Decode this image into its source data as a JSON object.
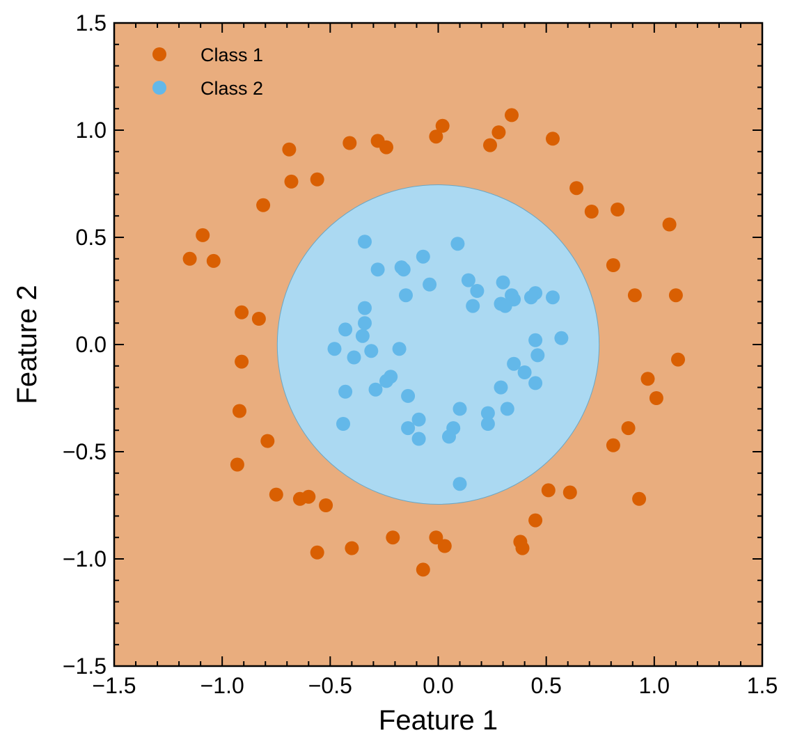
{
  "chart_data": {
    "type": "scatter",
    "title": "",
    "xlabel": "Feature 1",
    "ylabel": "Feature 2",
    "xlim": [
      -1.5,
      1.5
    ],
    "ylim": [
      -1.5,
      1.5
    ],
    "xticks": [
      "−1.5",
      "−1.0",
      "−0.5",
      "0.0",
      "0.5",
      "1.0",
      "1.5"
    ],
    "yticks": [
      "−1.5",
      "−1.0",
      "−0.5",
      "0.0",
      "0.5",
      "1.0",
      "1.5"
    ],
    "grid": false,
    "legend_position": "top-left",
    "decision_regions": {
      "outside_color": "#e9ad7e",
      "inside_color": "#abd9f2",
      "boundary": "circle",
      "center": [
        0,
        0
      ],
      "radius": 0.745
    },
    "series": [
      {
        "name": "Class 1",
        "color": "#d95f02",
        "points": [
          [
            -0.69,
            0.91
          ],
          [
            -0.41,
            0.94
          ],
          [
            -0.28,
            0.95
          ],
          [
            -0.24,
            0.92
          ],
          [
            -0.01,
            0.97
          ],
          [
            0.02,
            1.02
          ],
          [
            0.24,
            0.93
          ],
          [
            0.28,
            0.99
          ],
          [
            0.34,
            1.07
          ],
          [
            0.53,
            0.96
          ],
          [
            -0.68,
            0.76
          ],
          [
            -0.56,
            0.77
          ],
          [
            -0.81,
            0.65
          ],
          [
            0.64,
            0.73
          ],
          [
            0.71,
            0.62
          ],
          [
            0.83,
            0.63
          ],
          [
            1.07,
            0.56
          ],
          [
            -1.09,
            0.51
          ],
          [
            -1.15,
            0.4
          ],
          [
            -1.04,
            0.39
          ],
          [
            0.81,
            0.37
          ],
          [
            0.91,
            0.23
          ],
          [
            1.1,
            0.23
          ],
          [
            -0.91,
            0.15
          ],
          [
            -0.83,
            0.12
          ],
          [
            -0.91,
            -0.08
          ],
          [
            1.11,
            -0.07
          ],
          [
            0.97,
            -0.16
          ],
          [
            1.01,
            -0.25
          ],
          [
            -0.92,
            -0.31
          ],
          [
            0.88,
            -0.39
          ],
          [
            -0.79,
            -0.45
          ],
          [
            0.81,
            -0.47
          ],
          [
            -0.93,
            -0.56
          ],
          [
            -0.75,
            -0.7
          ],
          [
            -0.64,
            -0.72
          ],
          [
            -0.6,
            -0.71
          ],
          [
            -0.52,
            -0.75
          ],
          [
            0.51,
            -0.68
          ],
          [
            0.61,
            -0.69
          ],
          [
            0.93,
            -0.72
          ],
          [
            0.45,
            -0.82
          ],
          [
            -0.21,
            -0.9
          ],
          [
            -0.01,
            -0.9
          ],
          [
            0.38,
            -0.92
          ],
          [
            0.39,
            -0.95
          ],
          [
            0.03,
            -0.94
          ],
          [
            -0.4,
            -0.95
          ],
          [
            -0.56,
            -0.97
          ],
          [
            -0.07,
            -1.05
          ]
        ]
      },
      {
        "name": "Class 2",
        "color": "#63b8e9",
        "points": [
          [
            -0.34,
            0.48
          ],
          [
            0.09,
            0.47
          ],
          [
            -0.07,
            0.41
          ],
          [
            -0.17,
            0.36
          ],
          [
            -0.28,
            0.35
          ],
          [
            -0.16,
            0.35
          ],
          [
            -0.04,
            0.28
          ],
          [
            0.14,
            0.3
          ],
          [
            0.18,
            0.25
          ],
          [
            0.3,
            0.29
          ],
          [
            -0.15,
            0.23
          ],
          [
            0.34,
            0.23
          ],
          [
            0.45,
            0.24
          ],
          [
            0.43,
            0.22
          ],
          [
            0.53,
            0.22
          ],
          [
            0.29,
            0.19
          ],
          [
            0.35,
            0.21
          ],
          [
            0.31,
            0.18
          ],
          [
            0.16,
            0.18
          ],
          [
            -0.34,
            0.17
          ],
          [
            -0.34,
            0.1
          ],
          [
            -0.43,
            0.07
          ],
          [
            -0.35,
            0.04
          ],
          [
            -0.48,
            -0.02
          ],
          [
            -0.31,
            -0.03
          ],
          [
            -0.18,
            -0.02
          ],
          [
            -0.39,
            -0.06
          ],
          [
            0.45,
            0.02
          ],
          [
            0.57,
            0.03
          ],
          [
            0.46,
            -0.05
          ],
          [
            0.35,
            -0.09
          ],
          [
            0.4,
            -0.13
          ],
          [
            -0.22,
            -0.15
          ],
          [
            -0.24,
            -0.17
          ],
          [
            0.29,
            -0.2
          ],
          [
            0.45,
            -0.18
          ],
          [
            -0.43,
            -0.22
          ],
          [
            -0.29,
            -0.21
          ],
          [
            -0.14,
            -0.24
          ],
          [
            0.1,
            -0.3
          ],
          [
            0.23,
            -0.32
          ],
          [
            0.32,
            -0.3
          ],
          [
            -0.44,
            -0.37
          ],
          [
            -0.14,
            -0.39
          ],
          [
            -0.09,
            -0.35
          ],
          [
            0.07,
            -0.39
          ],
          [
            0.23,
            -0.37
          ],
          [
            -0.09,
            -0.44
          ],
          [
            0.05,
            -0.43
          ],
          [
            0.1,
            -0.65
          ]
        ]
      }
    ]
  }
}
